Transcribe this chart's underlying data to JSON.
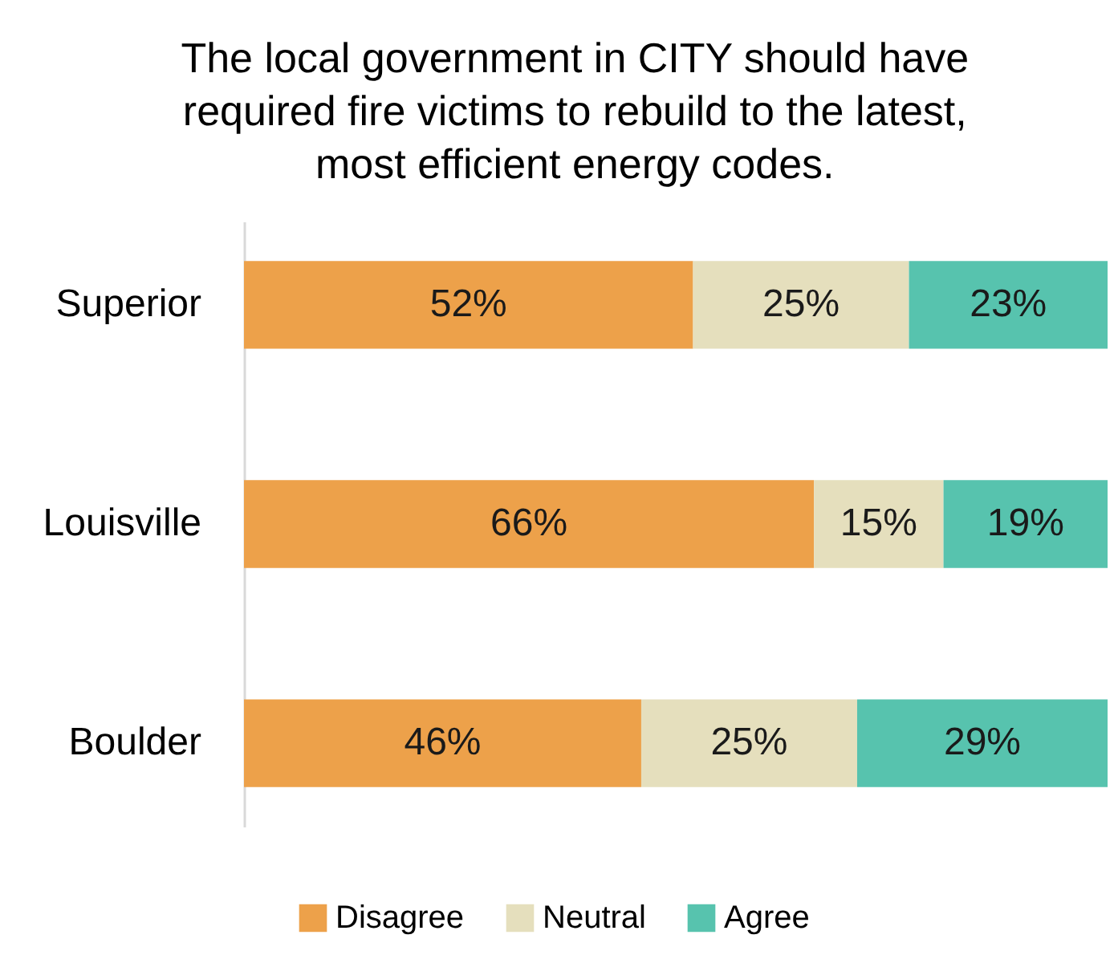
{
  "chart_data": {
    "type": "bar",
    "orientation": "horizontal",
    "stacked": true,
    "title": "The local government in CITY should have required fire victims to rebuild to the latest, most efficient energy codes.",
    "categories": [
      "Superior",
      "Louisville",
      "Boulder"
    ],
    "series": [
      {
        "name": "Disagree",
        "color": "#eda14a",
        "values": [
          52,
          66,
          46
        ],
        "value_labels": [
          "52%",
          "66%",
          "46%"
        ]
      },
      {
        "name": "Neutral",
        "color": "#e5dfbd",
        "values": [
          25,
          15,
          25
        ],
        "value_labels": [
          "25%",
          "15%",
          "25%"
        ]
      },
      {
        "name": "Agree",
        "color": "#57c3ae",
        "values": [
          23,
          19,
          29
        ],
        "value_labels": [
          "23%",
          "19%",
          "29%"
        ]
      }
    ],
    "legend": "bottom",
    "grid": false,
    "tick_labels": "y"
  }
}
